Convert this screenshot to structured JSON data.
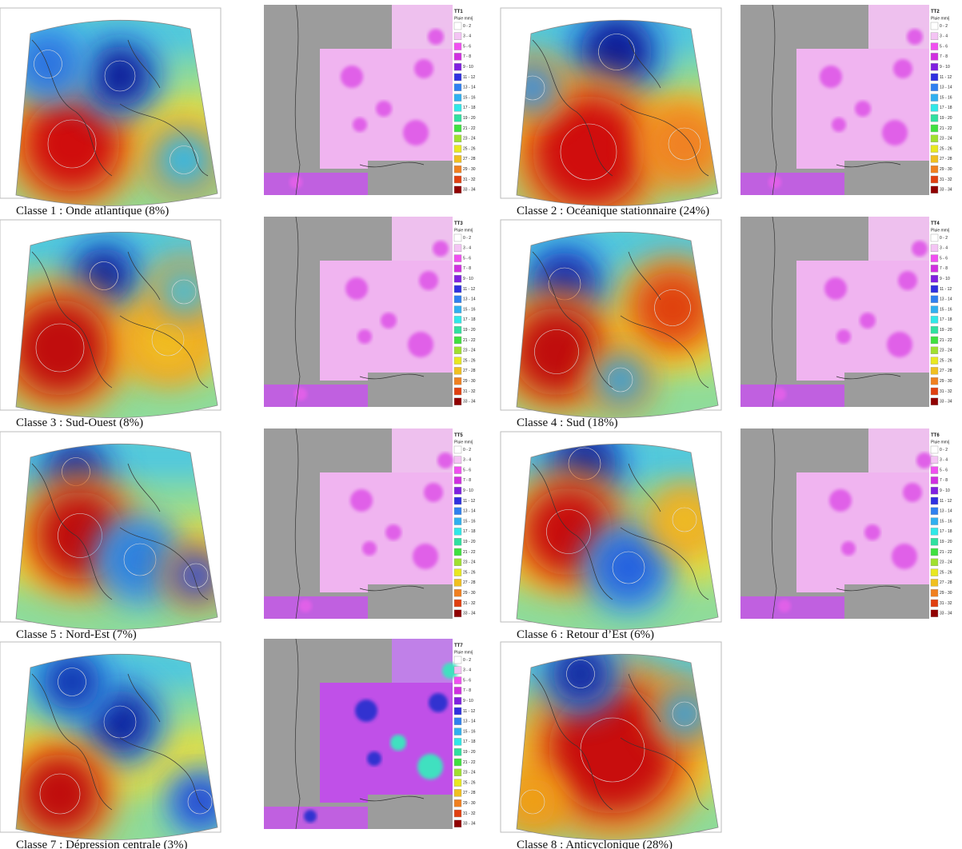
{
  "legend": {
    "unit": "Pluie mm/j",
    "labels": [
      "0 - 2",
      "3 - 4",
      "5 - 6",
      "7 - 8",
      "9 - 10",
      "11 - 12",
      "13 - 14",
      "15 - 16",
      "17 - 18",
      "19 - 20",
      "21 - 22",
      "23 - 24",
      "25 - 26",
      "27 - 28",
      "29 - 30",
      "31 - 32",
      "33 - 34"
    ]
  },
  "classes": [
    {
      "caption": "Classe 1 : Onde atlantique (8%)",
      "legend_title": "TT1"
    },
    {
      "caption": "Classe 2 : Océanique stationnaire (24%)",
      "legend_title": "TT2"
    },
    {
      "caption": "Classe 3 : Sud-Ouest (8%)",
      "legend_title": "TT3"
    },
    {
      "caption": "Classe 4 : Sud (18%)",
      "legend_title": "TT4"
    },
    {
      "caption": "Classe 5 : Nord-Est (7%)",
      "legend_title": "TT5"
    },
    {
      "caption": "Classe 6 : Retour d’Est (6%)",
      "legend_title": "TT6"
    },
    {
      "caption": "Classe 7 : Dépression centrale (3%)",
      "legend_title": "TT7"
    },
    {
      "caption": "Classe 8 : Anticyclonique (28%)"
    }
  ]
}
